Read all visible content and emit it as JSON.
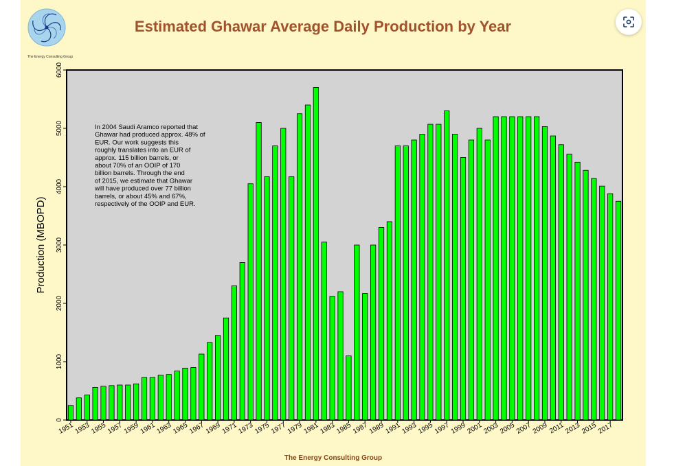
{
  "logo": {
    "label": "The Energy Consulting Group"
  },
  "zoom_button": {
    "icon": "lens-icon"
  },
  "chart_data": {
    "type": "bar",
    "title": "Estimated Ghawar Average Daily Production by Year",
    "ylabel": "Production (MBOPD)",
    "xlabel": "",
    "ylim": [
      0,
      6000
    ],
    "yticks": [
      0,
      1000,
      2000,
      3000,
      4000,
      5000,
      6000
    ],
    "grid": false,
    "background_color": "#d3d3d3",
    "bar_color": "#00ff00",
    "years": [
      1951,
      1952,
      1953,
      1954,
      1955,
      1956,
      1957,
      1958,
      1959,
      1960,
      1961,
      1962,
      1963,
      1964,
      1965,
      1966,
      1967,
      1968,
      1969,
      1970,
      1971,
      1972,
      1973,
      1974,
      1975,
      1976,
      1977,
      1978,
      1979,
      1980,
      1981,
      1982,
      1983,
      1984,
      1985,
      1986,
      1987,
      1988,
      1989,
      1990,
      1991,
      1992,
      1993,
      1994,
      1995,
      1996,
      1997,
      1998,
      1999,
      2000,
      2001,
      2002,
      2003,
      2004,
      2005,
      2006,
      2007,
      2008,
      2009,
      2010,
      2011,
      2012,
      2013,
      2014,
      2015,
      2016,
      2017,
      2018
    ],
    "xtick_labels": [
      "1951",
      "1953",
      "1955",
      "1957",
      "1959",
      "1961",
      "1963",
      "1965",
      "1967",
      "1969",
      "1971",
      "1973",
      "1975",
      "1977",
      "1979",
      "1981",
      "1983",
      "1985",
      "1987",
      "1989",
      "1991",
      "1993",
      "1995",
      "1997",
      "1999",
      "2001",
      "2003",
      "2005",
      "2007",
      "2009",
      "2011",
      "2013",
      "2015",
      "2017"
    ],
    "values": [
      250,
      380,
      430,
      560,
      580,
      590,
      600,
      600,
      620,
      730,
      730,
      770,
      780,
      840,
      890,
      900,
      1130,
      1330,
      1450,
      1750,
      2300,
      2700,
      4050,
      5100,
      4170,
      4700,
      5000,
      4170,
      5250,
      5400,
      5700,
      3050,
      2120,
      2200,
      1100,
      3000,
      2170,
      3000,
      3300,
      3400,
      4700,
      4700,
      4800,
      4900,
      5070,
      5070,
      5300,
      4900,
      4500,
      4800,
      5000,
      4800,
      5200,
      5200,
      5200,
      5200,
      5200,
      5200,
      5030,
      4870,
      4720,
      4560,
      4420,
      4280,
      4140,
      4010,
      3880,
      3750
    ],
    "annotation": [
      "In 2004 Saudi Aramco reported that",
      "Ghawar had produced approx. 48% of",
      "EUR.  Our work suggests this",
      "roughly translates into an EUR of",
      "approx. 115 billion barrels, or",
      "about 70% of an OOIP of 170",
      "billion barrels.  Through the end",
      "of 2015, we estimate that Ghawar",
      "will have produced over 77 billion",
      "barrels, or about 45% and 67%,",
      "respectively of the OOIP and EUR."
    ],
    "footer": "The Energy Consulting Group"
  }
}
